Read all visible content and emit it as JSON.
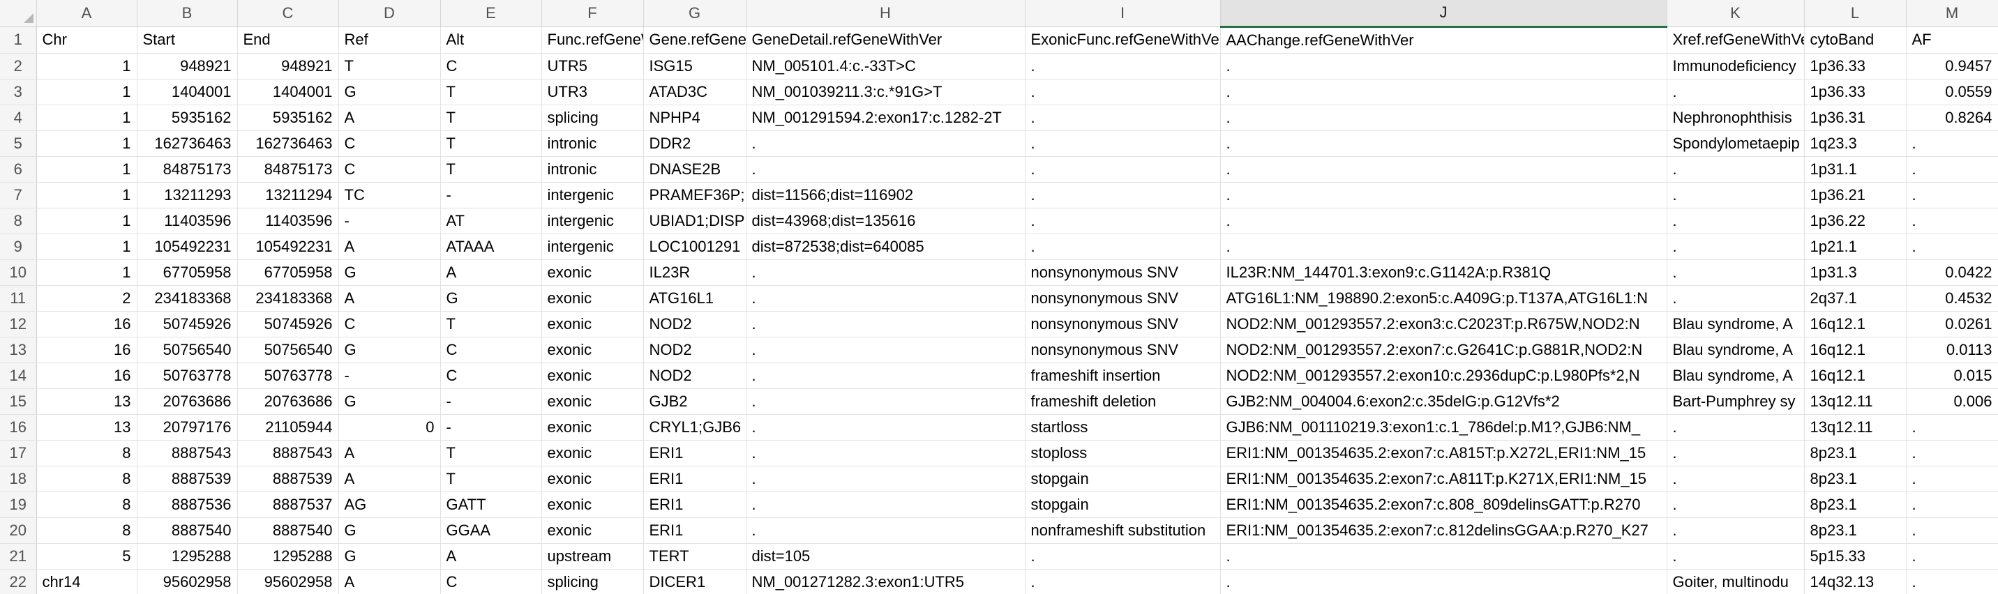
{
  "sheet": {
    "column_letters": [
      "A",
      "B",
      "C",
      "D",
      "E",
      "F",
      "G",
      "H",
      "I",
      "J",
      "K",
      "L",
      "M"
    ],
    "selected_column": "J",
    "rows": [
      {
        "n": "1",
        "c": [
          "Chr",
          "Start",
          "End",
          "Ref",
          "Alt",
          "Func.refGeneWithVer",
          "Gene.refGeneWithVer",
          "GeneDetail.refGeneWithVer",
          "ExonicFunc.refGeneWithVer",
          "AAChange.refGeneWithVer",
          "Xref.refGeneWithVer",
          "cytoBand",
          "AF"
        ]
      },
      {
        "n": "2",
        "c": [
          "1",
          "948921",
          "948921",
          "T",
          "C",
          "UTR5",
          "ISG15",
          "NM_005101.4:c.-33T>C",
          ".",
          ".",
          "Immunodeficiency",
          "1p36.33",
          "0.9457"
        ]
      },
      {
        "n": "3",
        "c": [
          "1",
          "1404001",
          "1404001",
          "G",
          "T",
          "UTR3",
          "ATAD3C",
          "NM_001039211.3:c.*91G>T",
          ".",
          ".",
          ".",
          "1p36.33",
          "0.0559"
        ]
      },
      {
        "n": "4",
        "c": [
          "1",
          "5935162",
          "5935162",
          "A",
          "T",
          "splicing",
          "NPHP4",
          "NM_001291594.2:exon17:c.1282-2T",
          ".",
          ".",
          "Nephronophthisis",
          "1p36.31",
          "0.8264"
        ]
      },
      {
        "n": "5",
        "c": [
          "1",
          "162736463",
          "162736463",
          "C",
          "T",
          "intronic",
          "DDR2",
          ".",
          ".",
          ".",
          "Spondylometaepip",
          "1q23.3",
          "."
        ]
      },
      {
        "n": "6",
        "c": [
          "1",
          "84875173",
          "84875173",
          "C",
          "T",
          "intronic",
          "DNASE2B",
          ".",
          ".",
          ".",
          ".",
          "1p31.1",
          "."
        ]
      },
      {
        "n": "7",
        "c": [
          "1",
          "13211293",
          "13211294",
          "TC",
          "-",
          "intergenic",
          "PRAMEF36P;",
          "dist=11566;dist=116902",
          ".",
          ".",
          ".",
          "1p36.21",
          "."
        ]
      },
      {
        "n": "8",
        "c": [
          "1",
          "11403596",
          "11403596",
          "-",
          "AT",
          "intergenic",
          "UBIAD1;DISP",
          "dist=43968;dist=135616",
          ".",
          ".",
          ".",
          "1p36.22",
          "."
        ]
      },
      {
        "n": "9",
        "c": [
          "1",
          "105492231",
          "105492231",
          "A",
          "ATAAA",
          "intergenic",
          "LOC1001291",
          "dist=872538;dist=640085",
          ".",
          ".",
          ".",
          "1p21.1",
          "."
        ]
      },
      {
        "n": "10",
        "c": [
          "1",
          "67705958",
          "67705958",
          "G",
          "A",
          "exonic",
          "IL23R",
          ".",
          "nonsynonymous SNV",
          "IL23R:NM_144701.3:exon9:c.G1142A:p.R381Q",
          ".",
          "1p31.3",
          "0.0422"
        ]
      },
      {
        "n": "11",
        "c": [
          "2",
          "234183368",
          "234183368",
          "A",
          "G",
          "exonic",
          "ATG16L1",
          ".",
          "nonsynonymous SNV",
          "ATG16L1:NM_198890.2:exon5:c.A409G:p.T137A,ATG16L1:N",
          ".",
          "2q37.1",
          "0.4532"
        ]
      },
      {
        "n": "12",
        "c": [
          "16",
          "50745926",
          "50745926",
          "C",
          "T",
          "exonic",
          "NOD2",
          ".",
          "nonsynonymous SNV",
          "NOD2:NM_001293557.2:exon3:c.C2023T:p.R675W,NOD2:N",
          "Blau syndrome, A",
          "16q12.1",
          "0.0261"
        ]
      },
      {
        "n": "13",
        "c": [
          "16",
          "50756540",
          "50756540",
          "G",
          "C",
          "exonic",
          "NOD2",
          ".",
          "nonsynonymous SNV",
          "NOD2:NM_001293557.2:exon7:c.G2641C:p.G881R,NOD2:N",
          "Blau syndrome, A",
          "16q12.1",
          "0.0113"
        ]
      },
      {
        "n": "14",
        "c": [
          "16",
          "50763778",
          "50763778",
          "-",
          "C",
          "exonic",
          "NOD2",
          ".",
          "frameshift insertion",
          "NOD2:NM_001293557.2:exon10:c.2936dupC:p.L980Pfs*2,N",
          "Blau syndrome, A",
          "16q12.1",
          "0.015"
        ]
      },
      {
        "n": "15",
        "c": [
          "13",
          "20763686",
          "20763686",
          "G",
          "-",
          "exonic",
          "GJB2",
          ".",
          "frameshift deletion",
          "GJB2:NM_004004.6:exon2:c.35delG:p.G12Vfs*2",
          "Bart-Pumphrey sy",
          "13q12.11",
          "0.006"
        ]
      },
      {
        "n": "16",
        "c": [
          "13",
          "20797176",
          "21105944",
          "0",
          "-",
          "exonic",
          "CRYL1;GJB6",
          ".",
          "startloss",
          "GJB6:NM_001110219.3:exon1:c.1_786del:p.M1?,GJB6:NM_",
          ".",
          "13q12.11",
          "."
        ]
      },
      {
        "n": "17",
        "c": [
          "8",
          "8887543",
          "8887543",
          "A",
          "T",
          "exonic",
          "ERI1",
          ".",
          "stoploss",
          "ERI1:NM_001354635.2:exon7:c.A815T:p.X272L,ERI1:NM_15",
          ".",
          "8p23.1",
          "."
        ]
      },
      {
        "n": "18",
        "c": [
          "8",
          "8887539",
          "8887539",
          "A",
          "T",
          "exonic",
          "ERI1",
          ".",
          "stopgain",
          "ERI1:NM_001354635.2:exon7:c.A811T:p.K271X,ERI1:NM_15",
          ".",
          "8p23.1",
          "."
        ]
      },
      {
        "n": "19",
        "c": [
          "8",
          "8887536",
          "8887537",
          "AG",
          "GATT",
          "exonic",
          "ERI1",
          ".",
          "stopgain",
          "ERI1:NM_001354635.2:exon7:c.808_809delinsGATT:p.R270",
          ".",
          "8p23.1",
          "."
        ]
      },
      {
        "n": "20",
        "c": [
          "8",
          "8887540",
          "8887540",
          "G",
          "GGAA",
          "exonic",
          "ERI1",
          ".",
          "nonframeshift substitution",
          "ERI1:NM_001354635.2:exon7:c.812delinsGGAA:p.R270_K27",
          ".",
          "8p23.1",
          "."
        ]
      },
      {
        "n": "21",
        "c": [
          "5",
          "1295288",
          "1295288",
          "G",
          "A",
          "upstream",
          "TERT",
          "dist=105",
          ".",
          ".",
          ".",
          "5p15.33",
          "."
        ]
      },
      {
        "n": "22",
        "c": [
          "chr14",
          "95602958",
          "95602958",
          "A",
          "C",
          "splicing",
          "DICER1",
          "NM_001271282.3:exon1:UTR5",
          ".",
          ".",
          "Goiter, multinodu",
          "14q32.13",
          "."
        ]
      }
    ]
  }
}
